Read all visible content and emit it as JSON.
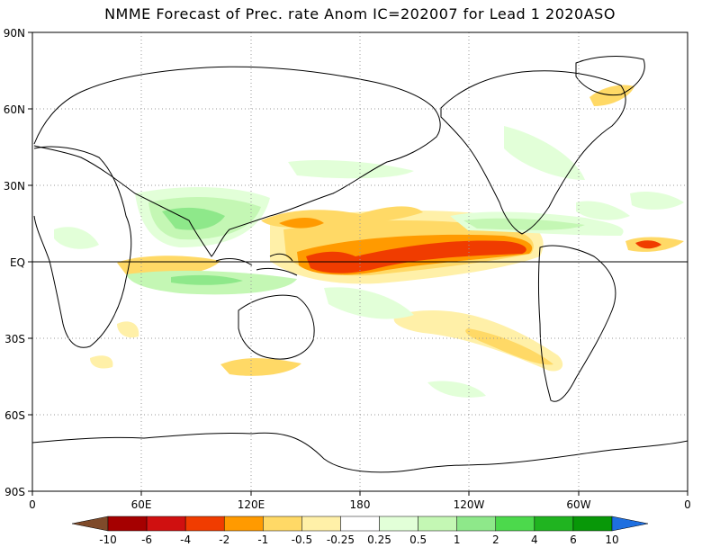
{
  "title": "NMME Forecast of Prec. rate Anom IC=202007 for Lead 1 2020ASO",
  "lat_labels": [
    "90N",
    "60N",
    "30N",
    "EQ",
    "30S",
    "60S",
    "90S"
  ],
  "lon_labels": [
    "0",
    "60E",
    "120E",
    "180",
    "120W",
    "60W",
    "0"
  ],
  "colorbar": {
    "labels": [
      "-10",
      "-6",
      "-4",
      "-2",
      "-1",
      "-0.5",
      "-0.25",
      "0.25",
      "0.5",
      "1",
      "2",
      "4",
      "6",
      "10"
    ],
    "colors": [
      "#7f4a2a",
      "#a50000",
      "#d01010",
      "#f03c00",
      "#ff9a00",
      "#ffd966",
      "#fff0a8",
      "#ffffff",
      "#e2ffd8",
      "#c4f7b4",
      "#8ee88a",
      "#4cd94c",
      "#20b420",
      "#089808",
      "#1e6fe0"
    ]
  },
  "map_colors": {
    "dry_strong": "#f03c00",
    "dry_mod": "#ff9a00",
    "dry_weak": "#ffd966",
    "dry_light": "#fff0a8",
    "wet_light": "#e2ffd8",
    "wet_weak": "#c4f7b4",
    "wet_mod": "#8ee88a",
    "wet_strong": "#4cd94c"
  }
}
